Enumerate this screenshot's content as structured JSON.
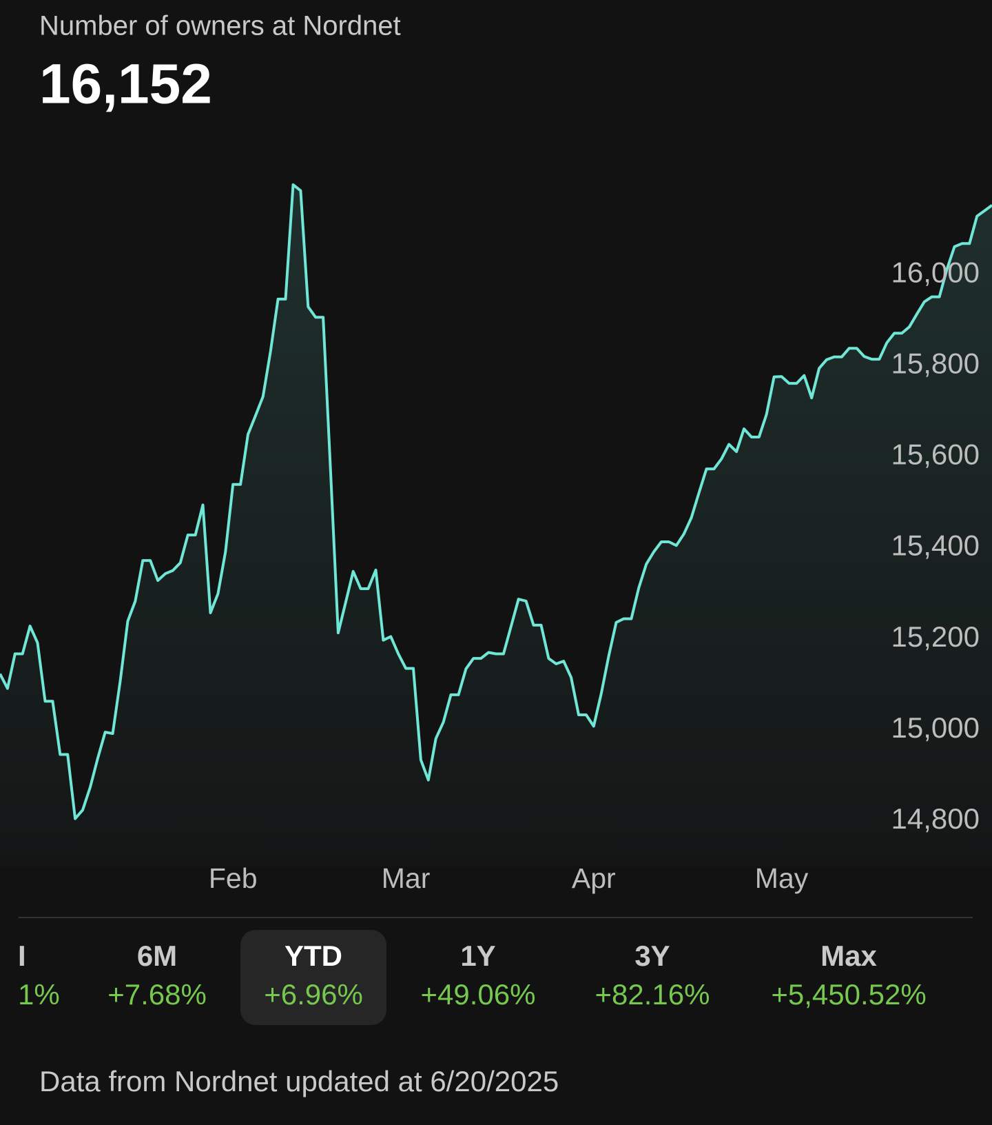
{
  "header": {
    "title": "Number of owners at Nordnet",
    "value": "16,152"
  },
  "chart_data": {
    "type": "line",
    "color": "#6fe6d6",
    "values": [
      15123,
      15091,
      15167,
      15167,
      15228,
      15191,
      15063,
      15063,
      14946,
      14946,
      14805,
      14824,
      14874,
      14937,
      14995,
      14992,
      15107,
      15239,
      15283,
      15372,
      15372,
      15328,
      15343,
      15350,
      15367,
      15428,
      15428,
      15494,
      15257,
      15299,
      15391,
      15539,
      15539,
      15649,
      15690,
      15732,
      15831,
      15946,
      15946,
      16197,
      16184,
      15929,
      15906,
      15906,
      15564,
      15213,
      15280,
      15348,
      15310,
      15310,
      15351,
      15197,
      15205,
      15167,
      15135,
      15135,
      14934,
      14890,
      14981,
      15017,
      15077,
      15077,
      15134,
      15157,
      15157,
      15170,
      15167,
      15167,
      15227,
      15287,
      15283,
      15230,
      15230,
      15157,
      15145,
      15151,
      15115,
      15033,
      15033,
      15008,
      15079,
      15162,
      15236,
      15244,
      15244,
      15312,
      15364,
      15391,
      15413,
      15413,
      15405,
      15430,
      15466,
      15520,
      15573,
      15573,
      15595,
      15627,
      15611,
      15661,
      15643,
      15643,
      15693,
      15775,
      15776,
      15761,
      15761,
      15778,
      15729,
      15794,
      15813,
      15819,
      15819,
      15838,
      15838,
      15820,
      15814,
      15814,
      15850,
      15871,
      15871,
      15885,
      15913,
      15940,
      15951,
      15951,
      16011,
      16061,
      16068,
      16068,
      16128,
      16140,
      16152
    ],
    "ylim": [
      14700,
      16300
    ],
    "yticks": [
      {
        "value": 14800,
        "label": "14,800"
      },
      {
        "value": 15000,
        "label": "15,000"
      },
      {
        "value": 15200,
        "label": "15,200"
      },
      {
        "value": 15400,
        "label": "15,400"
      },
      {
        "value": 15600,
        "label": "15,600"
      },
      {
        "value": 15800,
        "label": "15,800"
      },
      {
        "value": 16000,
        "label": "16,000"
      }
    ],
    "xlim": [
      0,
      132
    ],
    "xticks": [
      {
        "value": 31,
        "label": "Feb"
      },
      {
        "value": 54,
        "label": "Mar"
      },
      {
        "value": 79,
        "label": "Apr"
      },
      {
        "value": 104,
        "label": "May"
      }
    ]
  },
  "periods": [
    {
      "label": "I",
      "change": "1%"
    },
    {
      "label": "6M",
      "change": "+7.68%"
    },
    {
      "label": "YTD",
      "change": "+6.96%"
    },
    {
      "label": "1Y",
      "change": "+49.06%"
    },
    {
      "label": "3Y",
      "change": "+82.16%"
    },
    {
      "label": "Max",
      "change": "+5,450.52%"
    }
  ],
  "selected_period": 2,
  "footer": "Data from Nordnet updated at 6/20/2025"
}
